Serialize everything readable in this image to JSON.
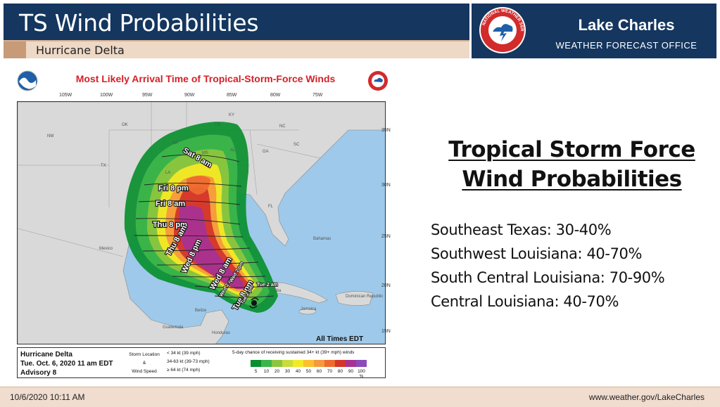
{
  "header": {
    "title": "TS Wind Probabilities",
    "subtitle": "Hurricane Delta",
    "office_name": "Lake Charles",
    "office_sub": "WEATHER FORECAST OFFICE",
    "logo_icon": "nws-logo-icon"
  },
  "graphic": {
    "title": "Most Likely Arrival Time of Tropical-Storm-Force Winds",
    "longitudes": [
      "105W",
      "100W",
      "95W",
      "90W",
      "85W",
      "80W",
      "75W"
    ],
    "latitudes": [
      "35N",
      "30N",
      "25N",
      "20N",
      "15N"
    ],
    "regions": [
      "NM",
      "OK",
      "TX",
      "AR",
      "MS",
      "AL",
      "LA",
      "GA",
      "SC",
      "NC",
      "KY",
      "TN",
      "FL",
      "Mexico",
      "Bahamas",
      "Cuba",
      "Jamaica",
      "Belize",
      "Guatemala",
      "Honduras",
      "Dominican Republic"
    ],
    "arrival_labels": [
      "Sat 8 am",
      "Fri 8 pm",
      "Fri 8 am",
      "Thu 8 pm",
      "Thu 8 am",
      "Wed 8 pm",
      "Wed 8 am",
      "Tue 8 pm",
      "Wed 2 am",
      "Tue 2 pm",
      "Wed 2 pm",
      "Tue 2 am"
    ],
    "time_note": "All Times EDT",
    "legend": {
      "storm_name": "Hurricane Delta",
      "issued": "Tue. Oct. 6, 2020  11 am EDT",
      "advisory": "Advisory 8",
      "location_label": "Storm Location",
      "amp": "&",
      "speed_label": "Wind Speed",
      "kt1": "< 34 kt (39 mph)",
      "kt2": "34-63 kt (39-73 mph)",
      "kt3": "≥ 64 kt (74 mph)",
      "chance": "5-day chance of receiving sustained 34+ kt (39+ mph) winds",
      "scale": [
        "5",
        "10",
        "20",
        "30",
        "40",
        "50",
        "60",
        "70",
        "80",
        "90",
        "100 %"
      ],
      "colors": [
        "#0a8f2f",
        "#3cb54a",
        "#8cc63f",
        "#c8dc3c",
        "#f4e925",
        "#fbc02d",
        "#f59a3c",
        "#ee6a2f",
        "#d4352b",
        "#a83291",
        "#8b4bb8"
      ]
    }
  },
  "content": {
    "heading_line1": "Tropical Storm Force",
    "heading_line2": "Wind Probabilities",
    "items": [
      "Southeast Texas: 30-40%",
      "Southwest Louisiana: 40-70%",
      "South Central Louisiana: 70-90%",
      "Central Louisiana: 40-70%"
    ]
  },
  "footer": {
    "date": "10/6/2020 10:11 AM",
    "url": "www.weather.gov/LakeCharles"
  }
}
